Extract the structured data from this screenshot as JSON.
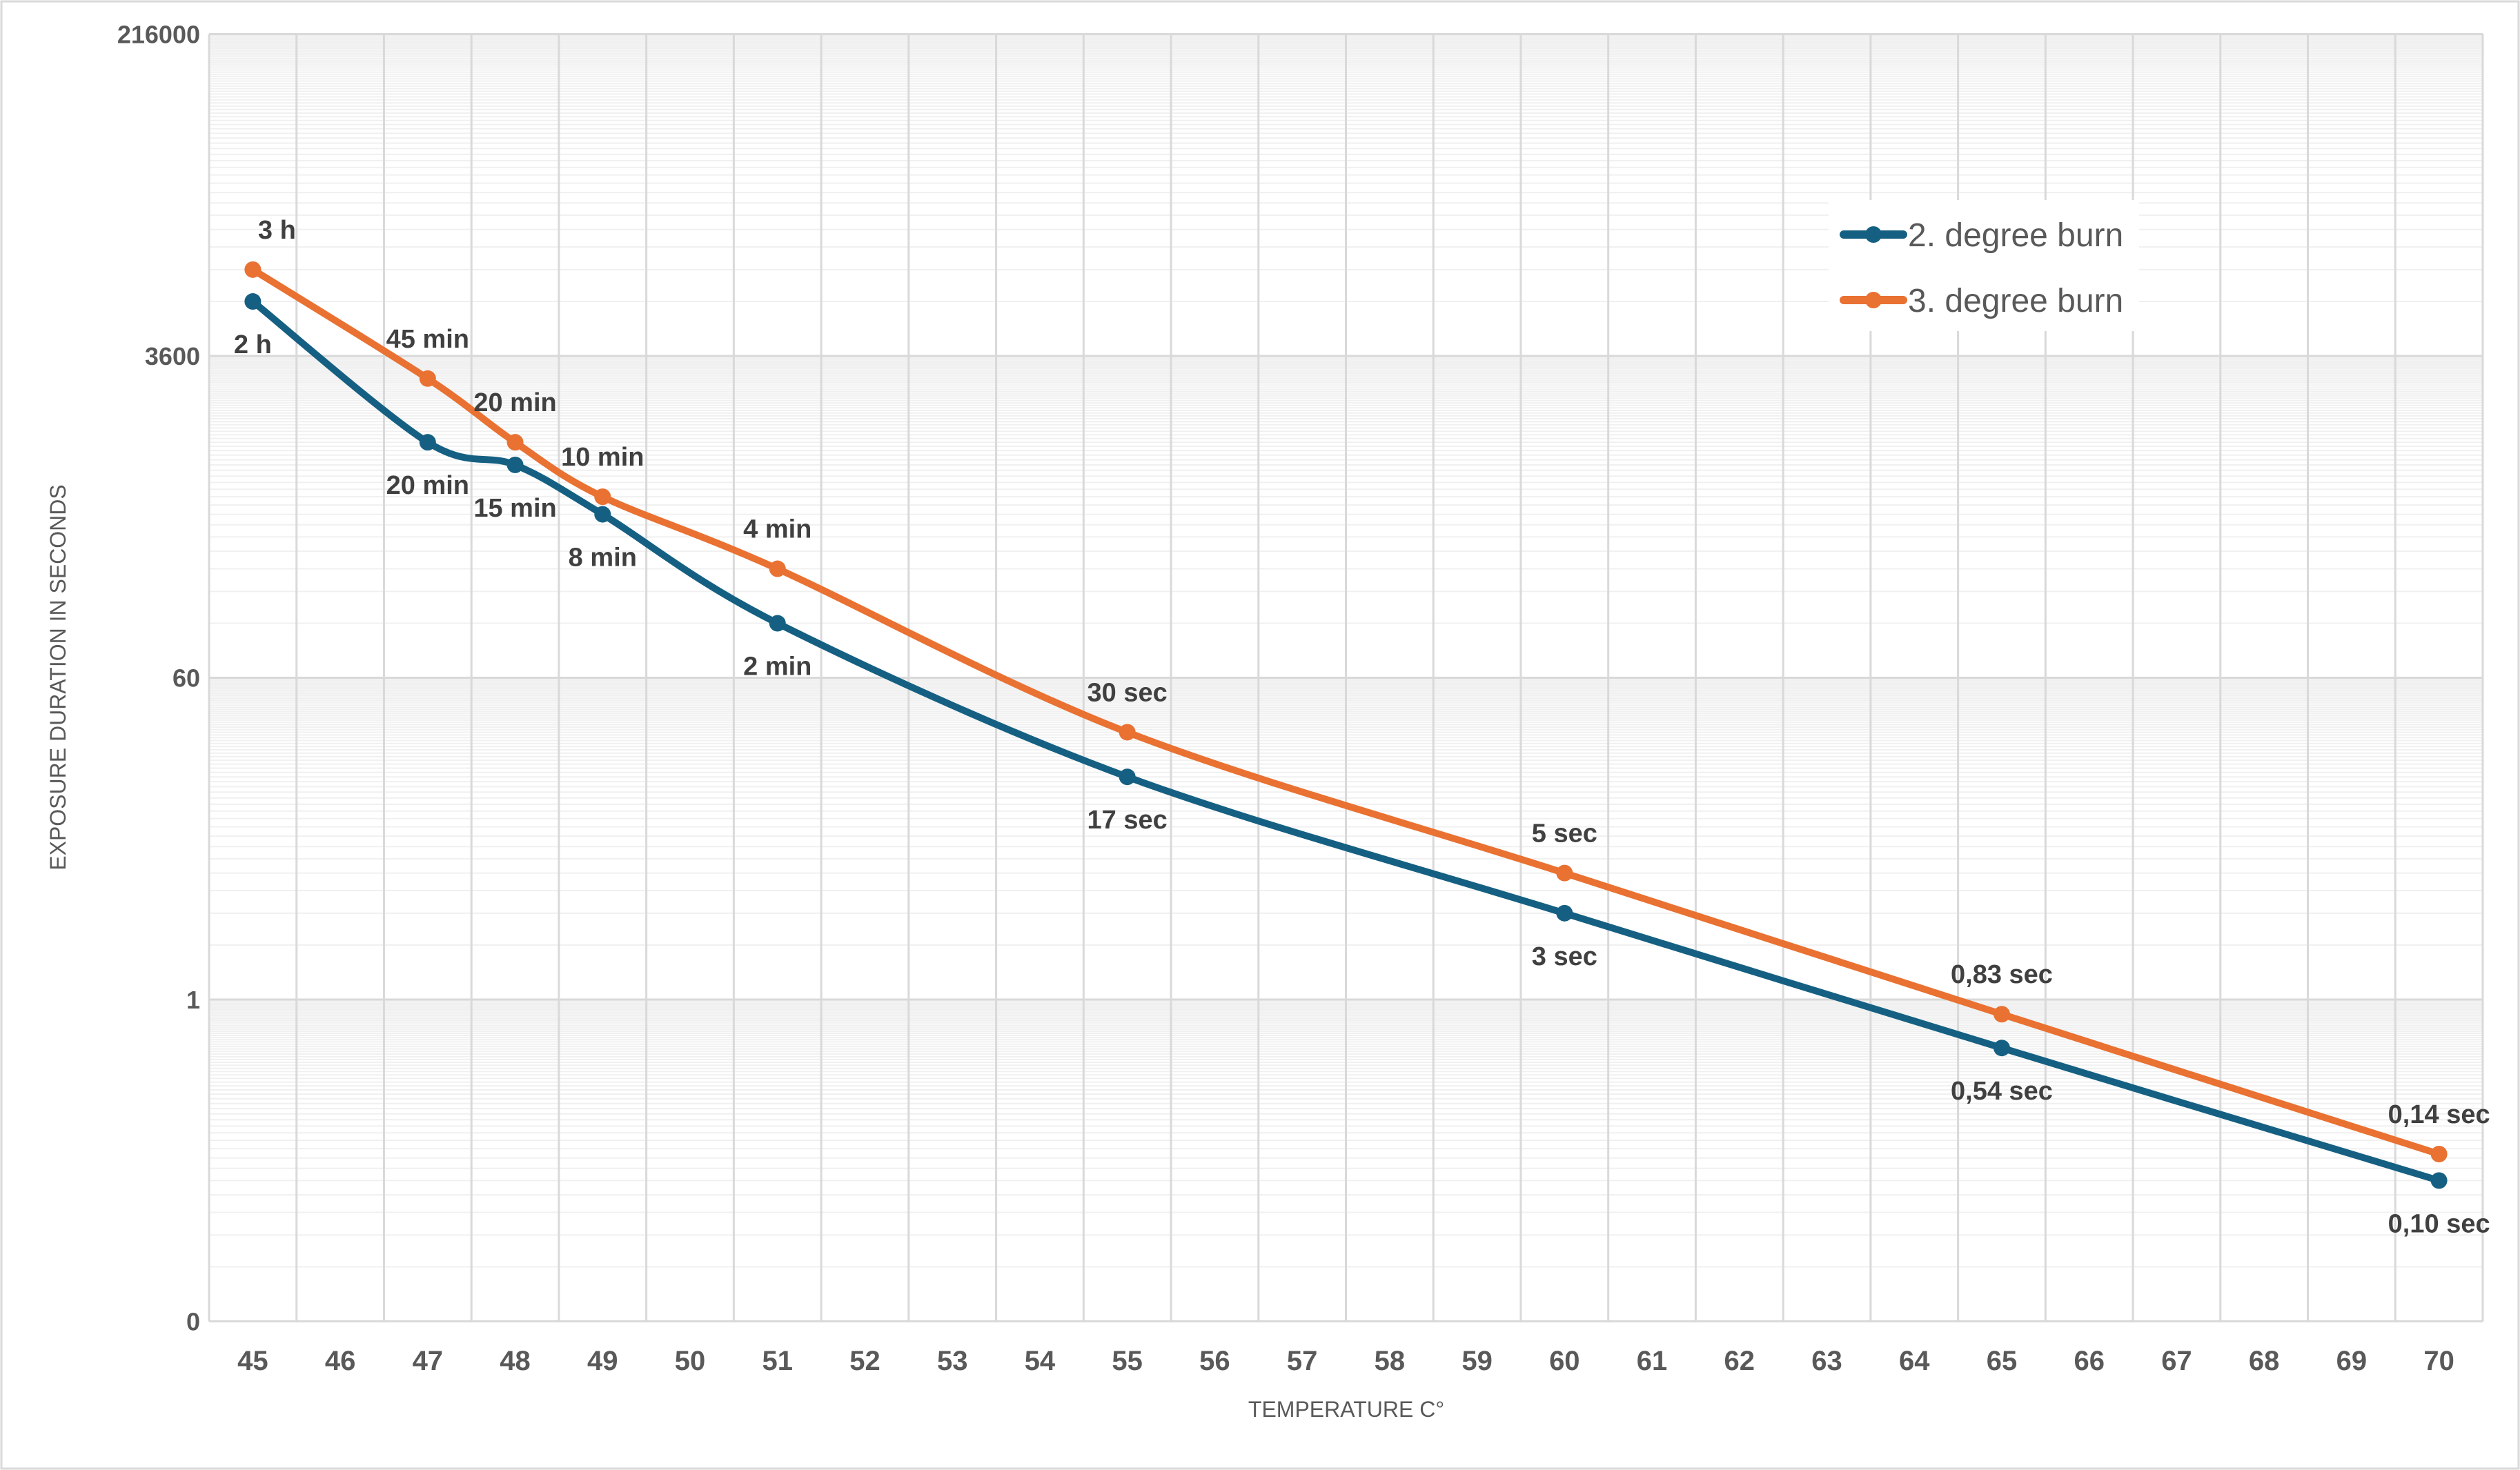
{
  "chart_data": {
    "type": "line",
    "title": "",
    "xlabel": "TEMPERATURE C°",
    "ylabel": "EXPOSURE DURATION IN SECONDS",
    "y_scale": "log",
    "y_log_base": 60,
    "ylim": [
      0.0166667,
      216000
    ],
    "y_ticks": [
      {
        "value": 216000,
        "label": "216000"
      },
      {
        "value": 3600,
        "label": "3600"
      },
      {
        "value": 60,
        "label": "60"
      },
      {
        "value": 1,
        "label": "1"
      },
      {
        "value": 0.0166667,
        "label": "0"
      }
    ],
    "categories": [
      "45",
      "46",
      "47",
      "48",
      "49",
      "50",
      "51",
      "52",
      "53",
      "54",
      "55",
      "56",
      "57",
      "58",
      "59",
      "60",
      "61",
      "62",
      "63",
      "64",
      "65",
      "66",
      "67",
      "68",
      "69",
      "70"
    ],
    "grid": true,
    "legend_position": "top-right",
    "smoothed": true,
    "series": [
      {
        "name": "2. degree burn",
        "color": "#156082",
        "label_position": "below",
        "points": [
          {
            "x": "45",
            "y": 7200,
            "label": "2 h"
          },
          {
            "x": "47",
            "y": 1200,
            "label": "20 min"
          },
          {
            "x": "48",
            "y": 900,
            "label": "15 min"
          },
          {
            "x": "49",
            "y": 480,
            "label": "8 min"
          },
          {
            "x": "51",
            "y": 120,
            "label": "2 min"
          },
          {
            "x": "55",
            "y": 17,
            "label": "17 sec"
          },
          {
            "x": "60",
            "y": 3,
            "label": "3 sec"
          },
          {
            "x": "65",
            "y": 0.54,
            "label": "0,54 sec"
          },
          {
            "x": "70",
            "y": 0.1,
            "label": "0,10 sec"
          }
        ]
      },
      {
        "name": "3. degree burn",
        "color": "#E97132",
        "label_position": "above",
        "points": [
          {
            "x": "45",
            "y": 10800,
            "label": "3 h"
          },
          {
            "x": "47",
            "y": 2700,
            "label": "45 min"
          },
          {
            "x": "48",
            "y": 1200,
            "label": "20 min"
          },
          {
            "x": "49",
            "y": 600,
            "label": "10 min"
          },
          {
            "x": "51",
            "y": 240,
            "label": "4 min"
          },
          {
            "x": "55",
            "y": 30,
            "label": "30 sec"
          },
          {
            "x": "60",
            "y": 5,
            "label": "5 sec"
          },
          {
            "x": "65",
            "y": 0.83,
            "label": "0,83 sec"
          },
          {
            "x": "70",
            "y": 0.14,
            "label": "0,14 sec"
          }
        ]
      }
    ]
  }
}
